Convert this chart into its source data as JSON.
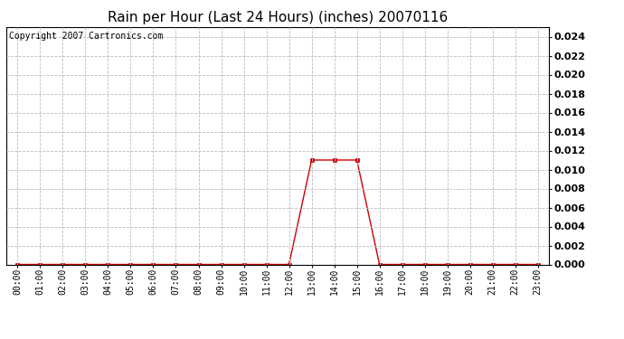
{
  "title": "Rain per Hour (Last 24 Hours) (inches) 20070116",
  "copyright_text": "Copyright 2007 Cartronics.com",
  "hours": [
    0,
    1,
    2,
    3,
    4,
    5,
    6,
    7,
    8,
    9,
    10,
    11,
    12,
    13,
    14,
    15,
    16,
    17,
    18,
    19,
    20,
    21,
    22,
    23
  ],
  "values": [
    0,
    0,
    0,
    0,
    0,
    0,
    0,
    0,
    0,
    0,
    0,
    0,
    0,
    0.011,
    0.011,
    0.011,
    0,
    0,
    0,
    0,
    0,
    0,
    0,
    0
  ],
  "line_color": "#cc0000",
  "marker_color": "#cc0000",
  "bg_color": "#ffffff",
  "plot_bg_color": "#ffffff",
  "grid_color": "#bbbbbb",
  "ylim": [
    0,
    0.025
  ],
  "ytick_values": [
    0.0,
    0.002,
    0.004,
    0.006,
    0.008,
    0.01,
    0.012,
    0.014,
    0.016,
    0.018,
    0.02,
    0.022,
    0.024
  ],
  "title_fontsize": 11,
  "copyright_fontsize": 7,
  "axis_fontsize": 7,
  "y_axis_fontsize": 8
}
